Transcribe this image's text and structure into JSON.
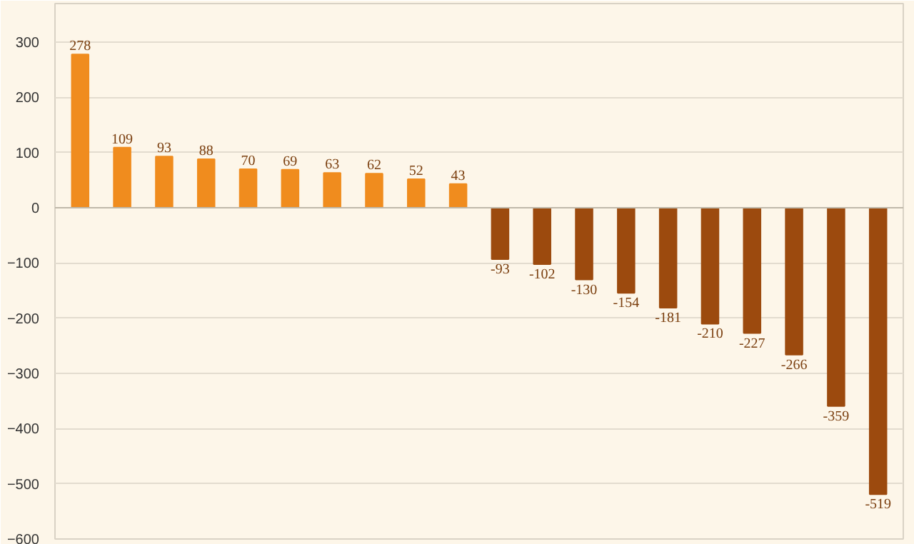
{
  "chart_data": {
    "type": "bar",
    "categories": [
      null,
      null,
      null,
      null,
      null,
      null,
      null,
      null,
      null,
      null,
      null,
      null,
      null,
      null,
      null,
      null,
      null,
      null,
      null,
      null
    ],
    "values": [
      278,
      109,
      93,
      88,
      70,
      69,
      63,
      62,
      52,
      43,
      -93,
      -102,
      -130,
      -154,
      -181,
      -210,
      -227,
      -266,
      -359,
      -519
    ],
    "colors": [
      "#f08c1e",
      "#f08c1e",
      "#f08c1e",
      "#f08c1e",
      "#f08c1e",
      "#f08c1e",
      "#f08c1e",
      "#f08c1e",
      "#f08c1e",
      "#f08c1e",
      "#9c4a0e",
      "#9c4a0e",
      "#9c4a0e",
      "#9c4a0e",
      "#9c4a0e",
      "#9c4a0e",
      "#9c4a0e",
      "#9c4a0e",
      "#9c4a0e",
      "#9c4a0e"
    ],
    "ylim": [
      -600,
      370
    ],
    "yticks": [
      -600,
      -500,
      -400,
      -300,
      -200,
      -100,
      0,
      100,
      200,
      300
    ],
    "grid": "y",
    "data_labels": true
  }
}
